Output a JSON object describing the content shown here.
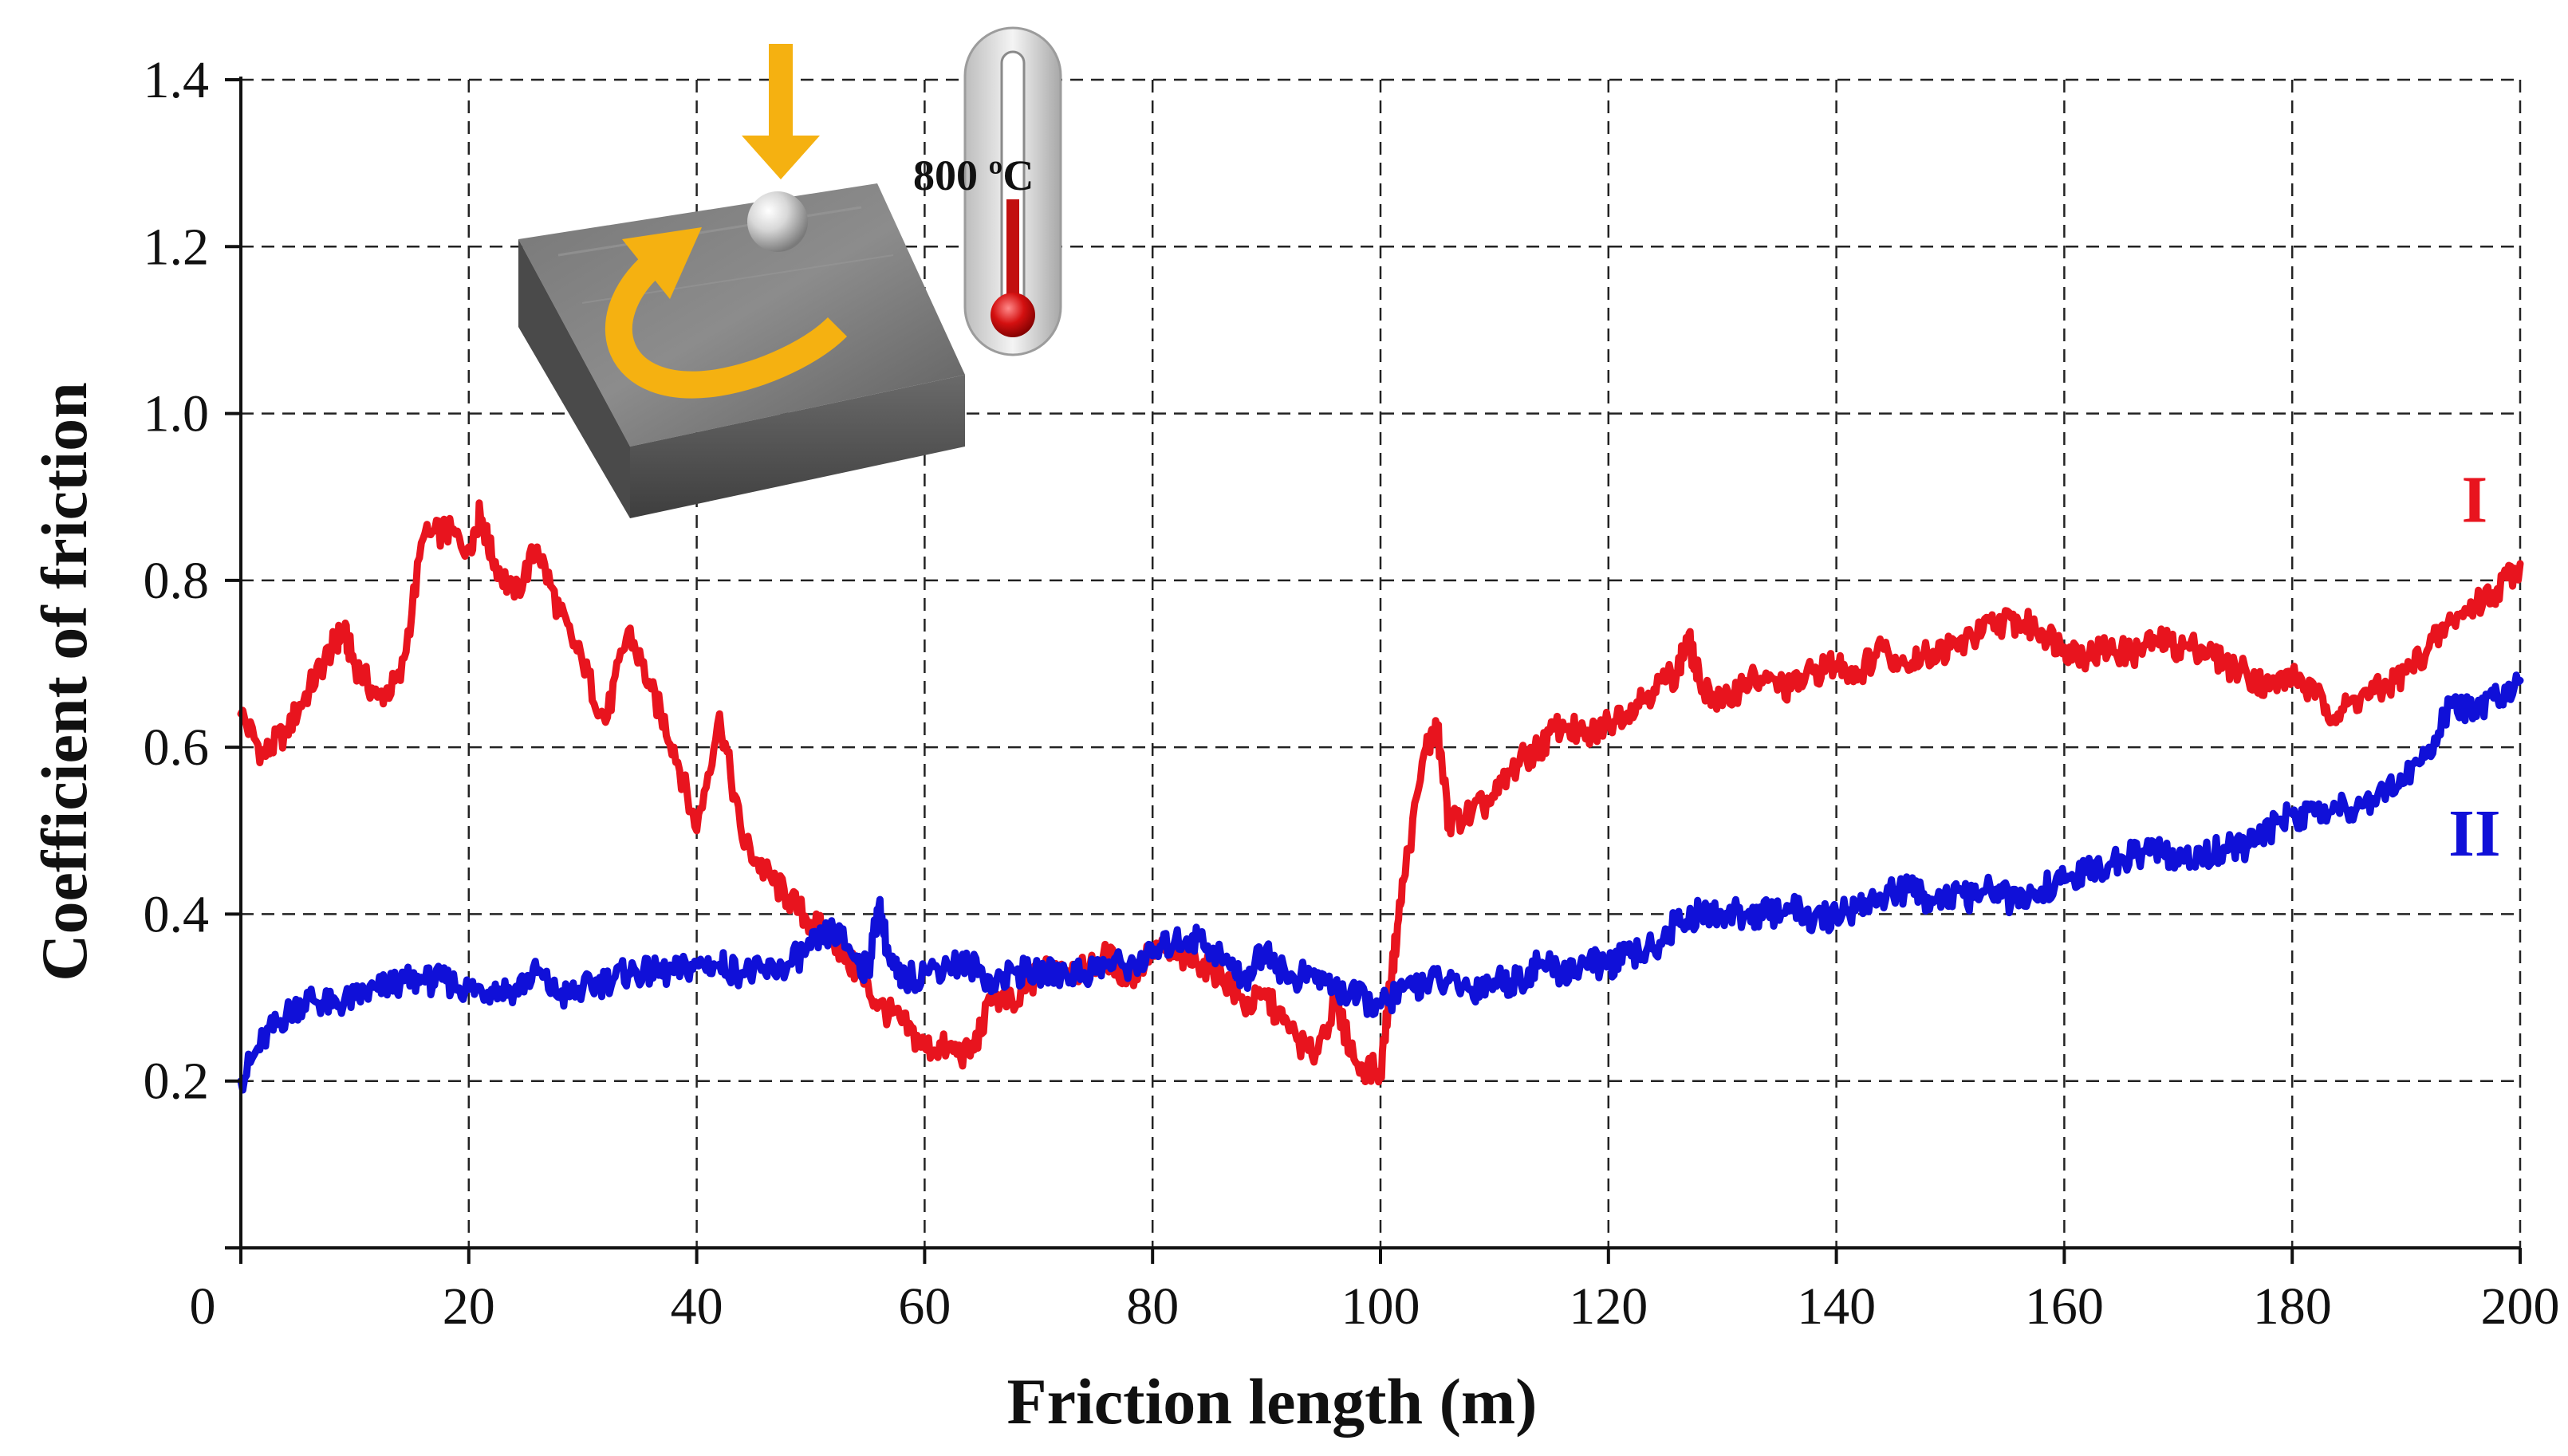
{
  "chart_data": {
    "type": "line",
    "title": "",
    "xlabel": "Friction length (m)",
    "ylabel": "Coefficient of friction",
    "xlim": [
      0,
      200
    ],
    "ylim": [
      0,
      1.4
    ],
    "x_ticks": [
      0,
      20,
      40,
      60,
      80,
      100,
      120,
      140,
      160,
      180,
      200
    ],
    "x_tick_labels": [
      "0",
      "20",
      "40",
      "60",
      "80",
      "100",
      "120",
      "140",
      "160",
      "180",
      "200"
    ],
    "y_ticks": [
      0.2,
      0.4,
      0.6,
      0.8,
      1.0,
      1.2,
      1.4
    ],
    "y_tick_labels": [
      "0.2",
      "0.4",
      "0.6",
      "0.8",
      "1.0",
      "1.2",
      "1.4"
    ],
    "grid": true,
    "series": [
      {
        "name": "I",
        "color": "#e8141e",
        "x": [
          0,
          2,
          4,
          6,
          8,
          9,
          10,
          12,
          14,
          16,
          18,
          20,
          21,
          22,
          24,
          26,
          28,
          30,
          32,
          34,
          36,
          38,
          40,
          42,
          44,
          46,
          48,
          50,
          52,
          54,
          56,
          58,
          60,
          62,
          64,
          66,
          68,
          70,
          72,
          74,
          76,
          78,
          80,
          82,
          84,
          86,
          88,
          90,
          92,
          94,
          96,
          98,
          100,
          101,
          102,
          104,
          105,
          106,
          108,
          110,
          112,
          114,
          116,
          118,
          120,
          122,
          124,
          126,
          127,
          128,
          130,
          132,
          134,
          136,
          138,
          140,
          142,
          144,
          146,
          148,
          150,
          152,
          154,
          156,
          158,
          160,
          162,
          164,
          166,
          168,
          170,
          172,
          174,
          176,
          178,
          180,
          182,
          184,
          186,
          188,
          190,
          192,
          194,
          196,
          198,
          200
        ],
        "values": [
          0.64,
          0.59,
          0.62,
          0.67,
          0.72,
          0.74,
          0.7,
          0.66,
          0.68,
          0.85,
          0.86,
          0.84,
          0.88,
          0.83,
          0.78,
          0.84,
          0.76,
          0.7,
          0.63,
          0.74,
          0.67,
          0.6,
          0.5,
          0.64,
          0.49,
          0.45,
          0.42,
          0.39,
          0.37,
          0.33,
          0.29,
          0.27,
          0.24,
          0.24,
          0.23,
          0.3,
          0.29,
          0.33,
          0.34,
          0.33,
          0.35,
          0.32,
          0.36,
          0.35,
          0.34,
          0.33,
          0.29,
          0.3,
          0.26,
          0.23,
          0.29,
          0.22,
          0.21,
          0.33,
          0.44,
          0.6,
          0.62,
          0.51,
          0.52,
          0.54,
          0.58,
          0.6,
          0.63,
          0.61,
          0.63,
          0.65,
          0.67,
          0.69,
          0.73,
          0.68,
          0.65,
          0.68,
          0.68,
          0.67,
          0.69,
          0.7,
          0.69,
          0.72,
          0.7,
          0.71,
          0.72,
          0.73,
          0.75,
          0.75,
          0.74,
          0.72,
          0.71,
          0.72,
          0.71,
          0.73,
          0.72,
          0.72,
          0.7,
          0.69,
          0.67,
          0.69,
          0.66,
          0.64,
          0.66,
          0.67,
          0.69,
          0.72,
          0.75,
          0.77,
          0.79,
          0.82
        ]
      },
      {
        "name": "II",
        "color": "#1010d8",
        "x": [
          0,
          2,
          4,
          6,
          8,
          10,
          12,
          14,
          16,
          18,
          20,
          22,
          24,
          26,
          28,
          30,
          32,
          34,
          36,
          38,
          40,
          42,
          44,
          46,
          48,
          50,
          52,
          54,
          55,
          56,
          57,
          58,
          60,
          62,
          64,
          66,
          68,
          70,
          72,
          74,
          76,
          78,
          80,
          82,
          84,
          86,
          88,
          90,
          92,
          94,
          96,
          98,
          100,
          102,
          104,
          106,
          108,
          110,
          112,
          114,
          116,
          118,
          120,
          122,
          124,
          126,
          128,
          130,
          132,
          134,
          136,
          138,
          140,
          142,
          144,
          146,
          148,
          150,
          152,
          154,
          156,
          158,
          160,
          162,
          164,
          166,
          168,
          170,
          172,
          174,
          176,
          178,
          180,
          182,
          184,
          186,
          188,
          190,
          192,
          194,
          196,
          198,
          200
        ],
        "values": [
          0.2,
          0.25,
          0.28,
          0.3,
          0.29,
          0.3,
          0.31,
          0.32,
          0.32,
          0.32,
          0.31,
          0.31,
          0.31,
          0.33,
          0.3,
          0.31,
          0.32,
          0.33,
          0.33,
          0.33,
          0.34,
          0.34,
          0.33,
          0.33,
          0.34,
          0.36,
          0.38,
          0.35,
          0.33,
          0.41,
          0.34,
          0.32,
          0.33,
          0.34,
          0.34,
          0.32,
          0.33,
          0.33,
          0.33,
          0.33,
          0.34,
          0.34,
          0.35,
          0.37,
          0.37,
          0.35,
          0.32,
          0.36,
          0.32,
          0.33,
          0.31,
          0.3,
          0.29,
          0.31,
          0.32,
          0.32,
          0.31,
          0.32,
          0.32,
          0.34,
          0.33,
          0.34,
          0.34,
          0.35,
          0.36,
          0.39,
          0.4,
          0.4,
          0.4,
          0.4,
          0.41,
          0.39,
          0.4,
          0.41,
          0.42,
          0.43,
          0.42,
          0.42,
          0.42,
          0.43,
          0.41,
          0.43,
          0.44,
          0.45,
          0.46,
          0.47,
          0.48,
          0.46,
          0.47,
          0.48,
          0.48,
          0.5,
          0.52,
          0.52,
          0.53,
          0.53,
          0.55,
          0.56,
          0.6,
          0.65,
          0.64,
          0.66,
          0.68
        ]
      }
    ],
    "annotations": [
      {
        "text": "I",
        "x": 196,
        "y": 0.87,
        "color": "#e8141e"
      },
      {
        "text": "II",
        "x": 196,
        "y": 0.47,
        "color": "#1010d8"
      }
    ],
    "inset": {
      "temperature_label": "800 ºC",
      "icons": [
        "square-sample-icon",
        "ball-icon",
        "down-arrow-icon",
        "rotation-arrow-icon",
        "thermometer-icon"
      ],
      "arrow_color": "#f5b111"
    }
  }
}
